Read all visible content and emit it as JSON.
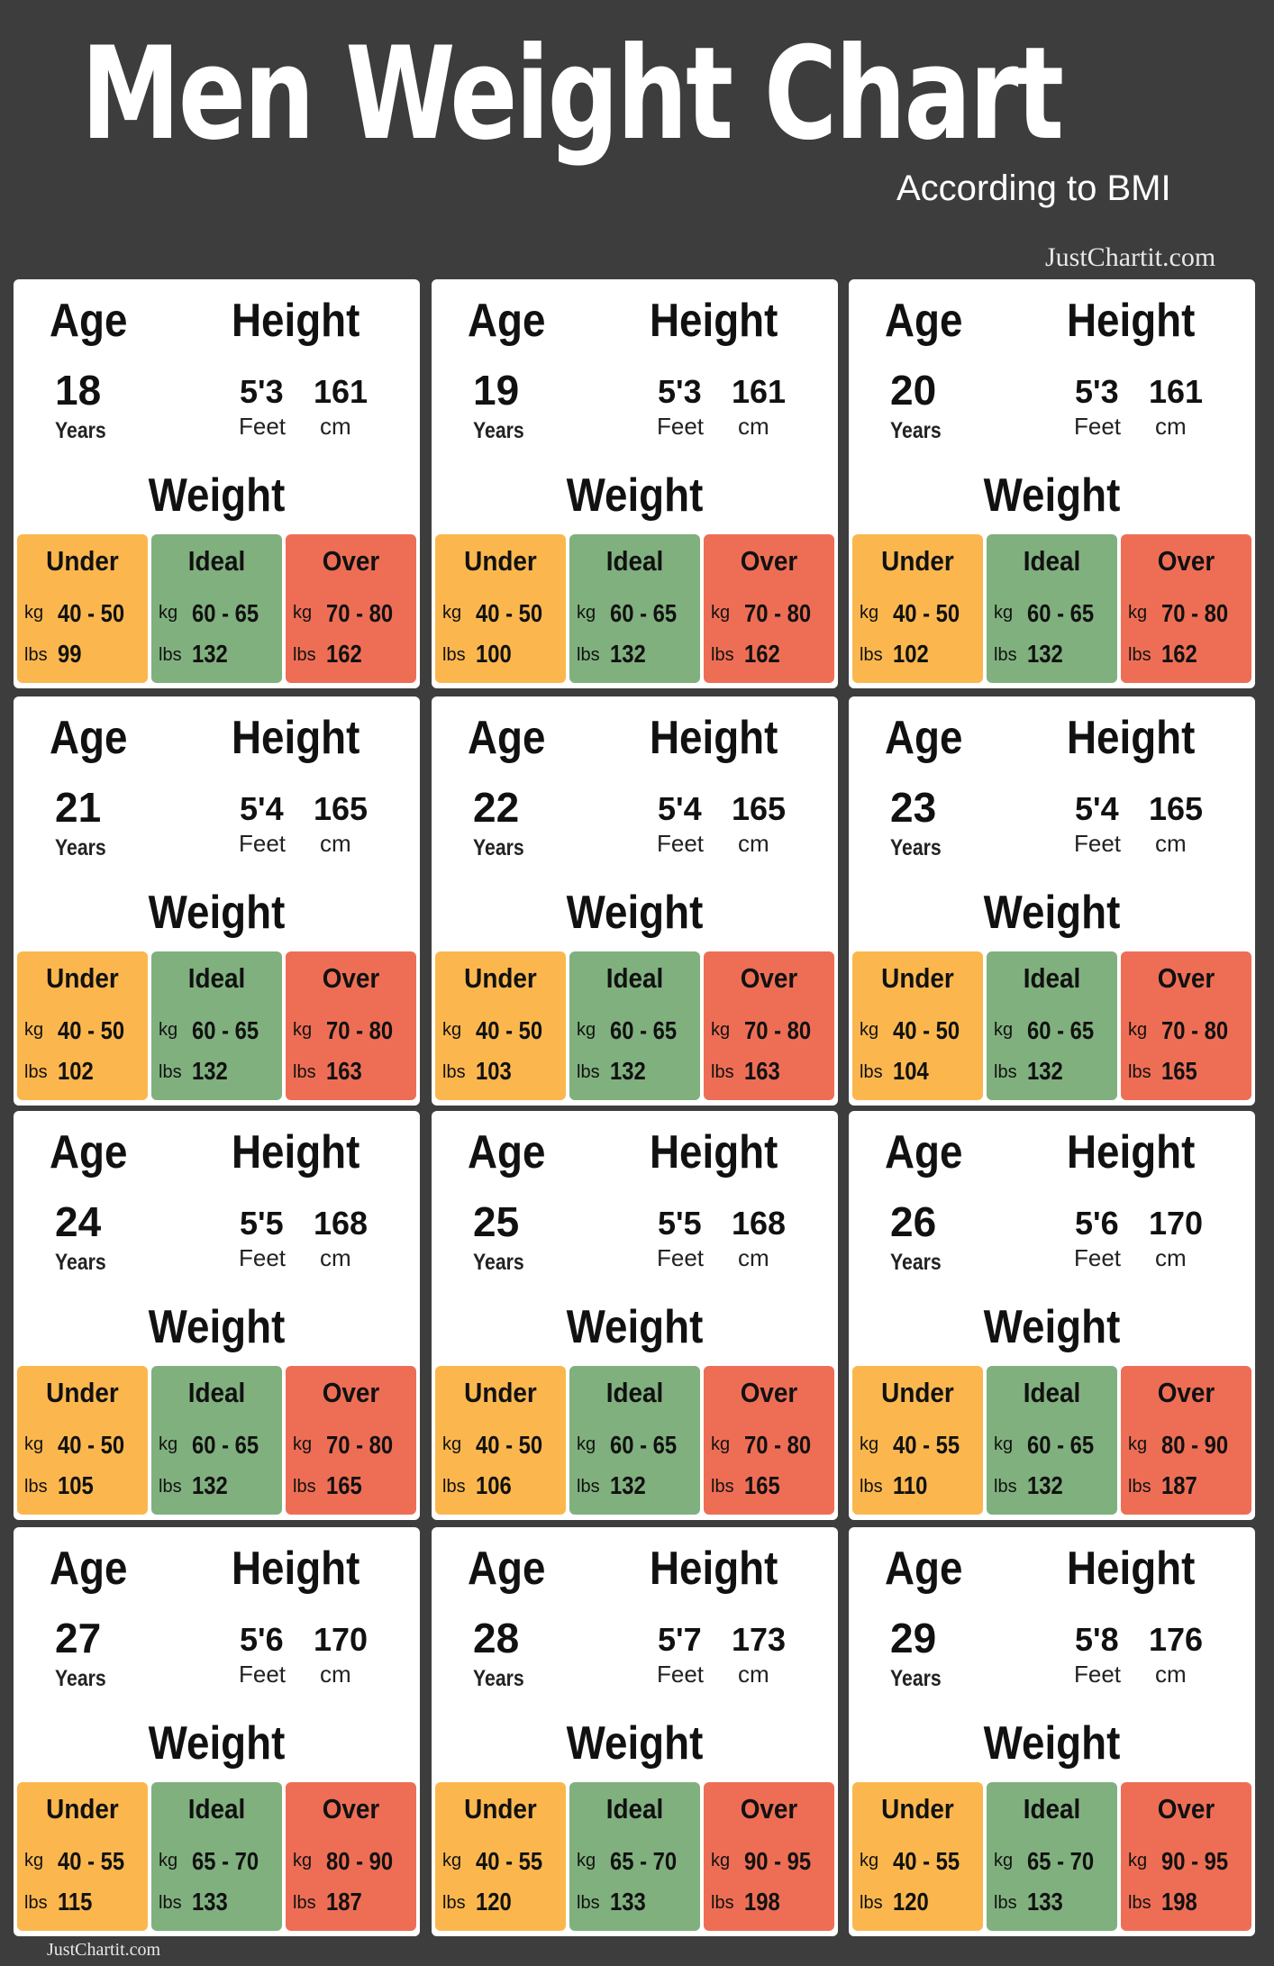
{
  "title": "Men Weight Chart",
  "subtitle": "According to BMI",
  "brand": "JustChartit.com",
  "labels": {
    "age": "Age",
    "height": "Height",
    "weight": "Weight",
    "years": "Years",
    "feet": "Feet",
    "cm": "cm",
    "kg": "kg",
    "lbs": "lbs",
    "under": "Under",
    "ideal": "Ideal",
    "over": "Over"
  },
  "colors": {
    "background": "#3d3d3d",
    "under": "#fbb74e",
    "ideal": "#80b07e",
    "over": "#ee6e55"
  },
  "cards": [
    {
      "age": "18",
      "feet": "5'3",
      "cm": "161",
      "under_kg": "40 - 50",
      "under_lbs": "99",
      "ideal_kg": "60 - 65",
      "ideal_lbs": "132",
      "over_kg": "70 - 80",
      "over_lbs": "162"
    },
    {
      "age": "19",
      "feet": "5'3",
      "cm": "161",
      "under_kg": "40 - 50",
      "under_lbs": "100",
      "ideal_kg": "60 - 65",
      "ideal_lbs": "132",
      "over_kg": "70 - 80",
      "over_lbs": "162"
    },
    {
      "age": "20",
      "feet": "5'3",
      "cm": "161",
      "under_kg": "40 - 50",
      "under_lbs": "102",
      "ideal_kg": "60 - 65",
      "ideal_lbs": "132",
      "over_kg": "70 - 80",
      "over_lbs": "162"
    },
    {
      "age": "21",
      "feet": "5'4",
      "cm": "165",
      "under_kg": "40 - 50",
      "under_lbs": "102",
      "ideal_kg": "60 - 65",
      "ideal_lbs": "132",
      "over_kg": "70 - 80",
      "over_lbs": "163"
    },
    {
      "age": "22",
      "feet": "5'4",
      "cm": "165",
      "under_kg": "40 - 50",
      "under_lbs": "103",
      "ideal_kg": "60 - 65",
      "ideal_lbs": "132",
      "over_kg": "70 - 80",
      "over_lbs": "163"
    },
    {
      "age": "23",
      "feet": "5'4",
      "cm": "165",
      "under_kg": "40 - 50",
      "under_lbs": "104",
      "ideal_kg": "60 - 65",
      "ideal_lbs": "132",
      "over_kg": "70 - 80",
      "over_lbs": "165"
    },
    {
      "age": "24",
      "feet": "5'5",
      "cm": "168",
      "under_kg": "40 - 50",
      "under_lbs": "105",
      "ideal_kg": "60 - 65",
      "ideal_lbs": "132",
      "over_kg": "70 - 80",
      "over_lbs": "165"
    },
    {
      "age": "25",
      "feet": "5'5",
      "cm": "168",
      "under_kg": "40 - 50",
      "under_lbs": "106",
      "ideal_kg": "60 - 65",
      "ideal_lbs": "132",
      "over_kg": "70 - 80",
      "over_lbs": "165"
    },
    {
      "age": "26",
      "feet": "5'6",
      "cm": "170",
      "under_kg": "40 - 55",
      "under_lbs": "110",
      "ideal_kg": "60 - 65",
      "ideal_lbs": "132",
      "over_kg": "80 - 90",
      "over_lbs": "187"
    },
    {
      "age": "27",
      "feet": "5'6",
      "cm": "170",
      "under_kg": "40 - 55",
      "under_lbs": "115",
      "ideal_kg": "65 - 70",
      "ideal_lbs": "133",
      "over_kg": "80 - 90",
      "over_lbs": "187"
    },
    {
      "age": "28",
      "feet": "5'7",
      "cm": "173",
      "under_kg": "40 - 55",
      "under_lbs": "120",
      "ideal_kg": "65 - 70",
      "ideal_lbs": "133",
      "over_kg": "90 - 95",
      "over_lbs": "198"
    },
    {
      "age": "29",
      "feet": "5'8",
      "cm": "176",
      "under_kg": "40 - 55",
      "under_lbs": "120",
      "ideal_kg": "65 - 70",
      "ideal_lbs": "133",
      "over_kg": "90 - 95",
      "over_lbs": "198"
    }
  ]
}
